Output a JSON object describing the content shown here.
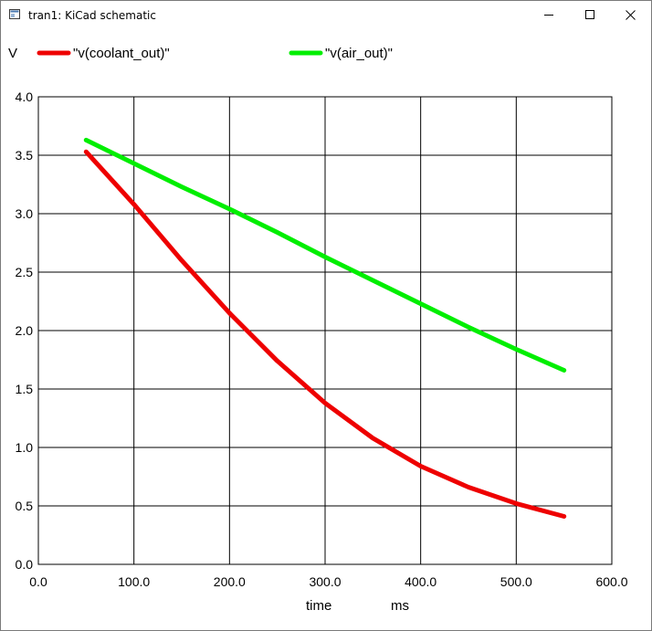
{
  "window": {
    "title": "tran1: KiCad schematic"
  },
  "chart_data": {
    "type": "line",
    "title": "",
    "xlabel": "time",
    "xunit": "ms",
    "ylabel": "V",
    "xlim": [
      0,
      600
    ],
    "ylim": [
      0,
      4
    ],
    "xticks": [
      "0.0",
      "100.0",
      "200.0",
      "300.0",
      "400.0",
      "500.0",
      "600.0"
    ],
    "yticks": [
      "0.0",
      "0.5",
      "1.0",
      "1.5",
      "2.0",
      "2.5",
      "3.0",
      "3.5",
      "4.0"
    ],
    "grid": true,
    "legend_position": "top",
    "series": [
      {
        "name": "\"v(coolant_out)\"",
        "color": "#ee0000",
        "x": [
          50,
          100,
          150,
          200,
          250,
          300,
          350,
          400,
          450,
          500,
          550
        ],
        "y": [
          3.53,
          3.08,
          2.6,
          2.15,
          1.74,
          1.38,
          1.08,
          0.84,
          0.66,
          0.52,
          0.41
        ]
      },
      {
        "name": "\"v(air_out)\"",
        "color": "#00ee00",
        "x": [
          50,
          100,
          150,
          200,
          250,
          300,
          350,
          400,
          450,
          500,
          550
        ],
        "y": [
          3.63,
          3.43,
          3.23,
          3.04,
          2.84,
          2.63,
          2.43,
          2.23,
          2.03,
          1.84,
          1.66
        ]
      }
    ]
  }
}
